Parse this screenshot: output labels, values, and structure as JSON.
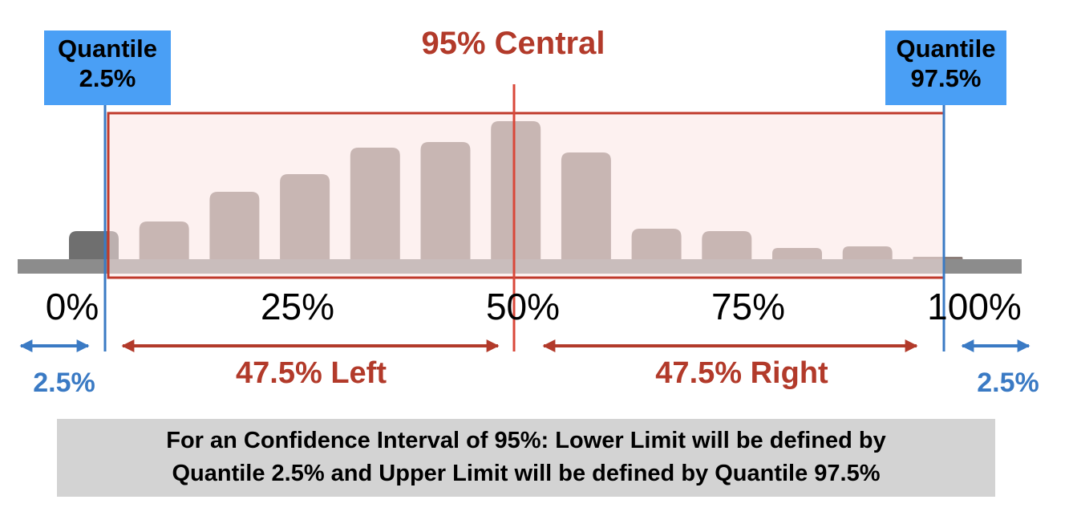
{
  "title": "95% Central",
  "quantile_low": {
    "line1": "Quantile",
    "line2": "2.5%"
  },
  "quantile_high": {
    "line1": "Quantile",
    "line2": "97.5%"
  },
  "chart_data": {
    "type": "bar",
    "values": [
      35,
      47,
      84,
      106,
      139,
      146,
      172,
      133,
      38,
      35,
      14,
      16,
      3
    ],
    "ticks": [
      "0%",
      "25%",
      "50%",
      "75%",
      "100%"
    ]
  },
  "spans": {
    "left_tail": "2.5%",
    "left_central": "47.5% Left",
    "right_central": "47.5% Right",
    "right_tail": "2.5%"
  },
  "caption": {
    "line1": "For an Confidence Interval of 95%: Lower Limit will be defined by",
    "line2": "Quantile 2.5% and Upper Limit will be defined by Quantile 97.5%"
  },
  "colors": {
    "bar": "#8b7d79",
    "central_region": "#fce6e4",
    "central_border": "#c0392b",
    "quantile_line": "#3a7ac4",
    "quantile_box": "#4a9ff5",
    "axis": "#8c8c8c"
  }
}
